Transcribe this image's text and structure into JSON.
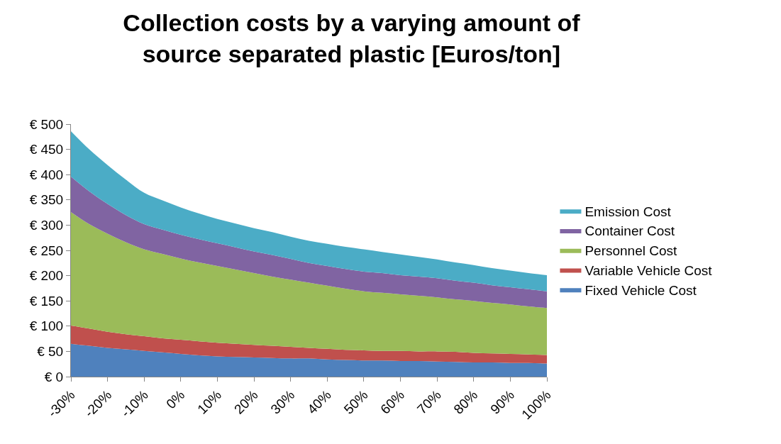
{
  "chart_data": {
    "type": "area",
    "stacked": true,
    "title": "Collection costs by a varying amount of source separated plastic [Euros/ton]",
    "categories": [
      "-30%",
      null,
      "-20%",
      null,
      "-10%",
      null,
      "0%",
      null,
      "10%",
      null,
      "20%",
      null,
      "30%",
      null,
      "40%",
      null,
      "50%",
      null,
      "60%",
      null,
      "70%",
      null,
      "80%",
      null,
      "90%",
      null,
      "100%"
    ],
    "series": [
      {
        "name": "Fixed Vehicle Cost",
        "color": "#4f81bd",
        "values": [
          65,
          61,
          57,
          54,
          51,
          48,
          45,
          42,
          40,
          39,
          38,
          37,
          36,
          36,
          34,
          33,
          32,
          32,
          31,
          31,
          30,
          29,
          28,
          28,
          27,
          27,
          26
        ]
      },
      {
        "name": "Variable Vehicle Cost",
        "color": "#c0504d",
        "values": [
          36,
          34,
          32,
          30,
          29,
          28,
          28,
          28,
          27,
          26,
          25,
          24,
          23,
          21,
          21,
          20,
          20,
          19,
          20,
          19,
          20,
          20,
          19,
          18,
          18,
          17,
          17
        ]
      },
      {
        "name": "Personnel Cost",
        "color": "#9bbb59",
        "values": [
          225,
          207,
          194,
          182,
          172,
          167,
          161,
          156,
          152,
          147,
          142,
          137,
          133,
          129,
          125,
          121,
          117,
          115,
          112,
          110,
          107,
          104,
          103,
          100,
          98,
          95,
          93
        ]
      },
      {
        "name": "Container Cost",
        "color": "#8064a2",
        "values": [
          70,
          65,
          59,
          54,
          50,
          48,
          47,
          46,
          45,
          44,
          43,
          43,
          41,
          39,
          39,
          39,
          39,
          39,
          38,
          38,
          38,
          37,
          36,
          35,
          34,
          34,
          33
        ]
      },
      {
        "name": "Emission Cost",
        "color": "#4bacc6",
        "values": [
          90,
          83,
          77,
          70,
          62,
          58,
          54,
          51,
          48,
          47,
          46,
          45,
          44,
          44,
          44,
          44,
          44,
          42,
          41,
          39,
          37,
          36,
          35,
          34,
          33,
          32,
          32
        ]
      }
    ],
    "ylim": [
      0,
      500
    ],
    "yticks": [
      {
        "value": 0,
        "label": "€ 0"
      },
      {
        "value": 50,
        "label": "€ 50"
      },
      {
        "value": 100,
        "label": "€ 100"
      },
      {
        "value": 150,
        "label": "€ 150"
      },
      {
        "value": 200,
        "label": "€ 200"
      },
      {
        "value": 250,
        "label": "€ 250"
      },
      {
        "value": 300,
        "label": "€ 300"
      },
      {
        "value": 350,
        "label": "€ 350"
      },
      {
        "value": 400,
        "label": "€ 400"
      },
      {
        "value": 450,
        "label": "€ 450"
      },
      {
        "value": 500,
        "label": "€ 500"
      }
    ],
    "legend": "right",
    "marker": "none"
  }
}
